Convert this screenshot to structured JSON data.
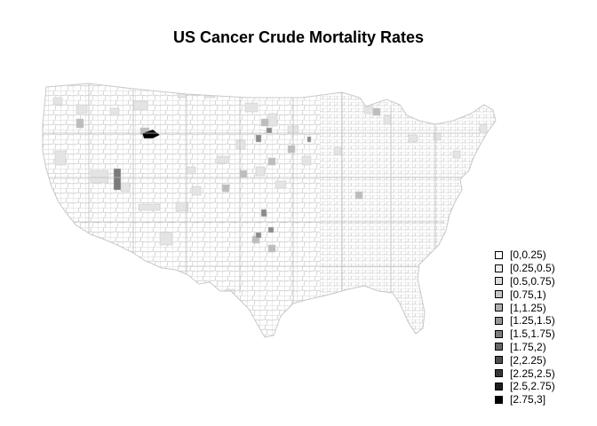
{
  "title": "US Cancer Crude Mortality Rates",
  "map": {
    "region": "contiguous-united-states",
    "unit": "county",
    "border_color": "#c8c8c8",
    "base_fill": "#ffffff",
    "highlight_counties": [
      {
        "area": "southwest-montana",
        "class_index": 11
      },
      {
        "area": "northeast-utah",
        "class_index": 6
      },
      {
        "area": "northern-great-plains",
        "class_index": 5
      },
      {
        "area": "western-texas",
        "class_index": 4
      },
      {
        "area": "western-kansas",
        "class_index": 4
      },
      {
        "area": "western-nebraska",
        "class_index": 3
      }
    ]
  },
  "legend": {
    "items": [
      {
        "label": "[0,0.25)",
        "color": "#ffffff"
      },
      {
        "label": "[0.25,0.5)",
        "color": "#ededed"
      },
      {
        "label": "[0.5,0.75)",
        "color": "#dbdbdb"
      },
      {
        "label": "[0.75,1)",
        "color": "#c6c6c6"
      },
      {
        "label": "[1,1.25)",
        "color": "#aeaeae"
      },
      {
        "label": "[1.25,1.5)",
        "color": "#969696"
      },
      {
        "label": "[1.5,1.75)",
        "color": "#7e7e7e"
      },
      {
        "label": "[1.75,2)",
        "color": "#676767"
      },
      {
        "label": "[2,2.25)",
        "color": "#4f4f4f"
      },
      {
        "label": "[2.25,2.5)",
        "color": "#373737"
      },
      {
        "label": "[2.5,2.75)",
        "color": "#1e1e1e"
      },
      {
        "label": "[2.75,3]",
        "color": "#000000"
      }
    ]
  }
}
